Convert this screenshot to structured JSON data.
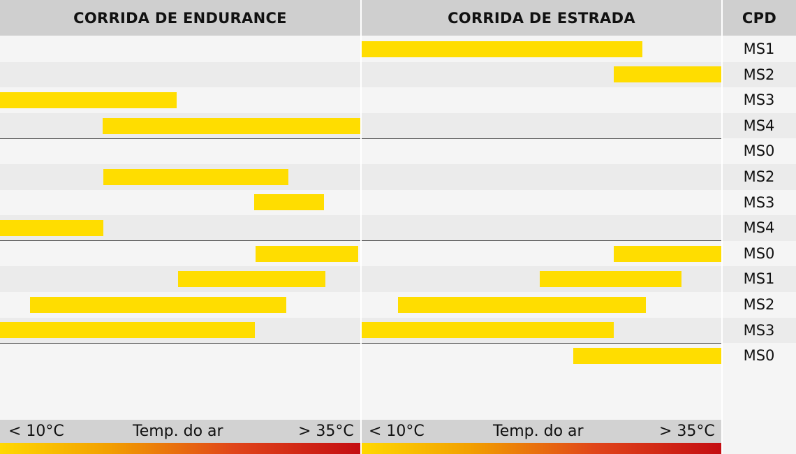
{
  "header": {
    "endurance_title": "CORRIDA DE ENDURANCE",
    "road_title": "CORRIDA DE ESTRADA",
    "cpd_title": "CPD"
  },
  "footer": {
    "endurance": {
      "low": "< 10°C",
      "mid": "Temp. do ar",
      "high": "> 35°C"
    },
    "road": {
      "low": "< 10°C",
      "mid": "Temp. do ar",
      "high": "> 35°C"
    }
  },
  "colors": {
    "bar": "#ffdd00",
    "grad_start": "#ffd800",
    "grad_end": "#c40d12",
    "header_bg": "#cfcfcf"
  },
  "chart_data": {
    "type": "bar",
    "orientation": "horizontal-range",
    "x_scale": "relative air temperature from < 10°C (0.0) to > 35°C (1.0)",
    "panels": [
      "CORRIDA DE ENDURANCE",
      "CORRIDA DE ESTRADA"
    ],
    "rows": [
      {
        "ms": "MS1",
        "endurance": null,
        "road": [
          0.0,
          0.78
        ]
      },
      {
        "ms": "MS2",
        "endurance": null,
        "road": [
          0.7,
          1.0
        ]
      },
      {
        "ms": "MS3",
        "endurance": [
          0.0,
          0.49
        ],
        "road": null
      },
      {
        "ms": "MS4",
        "endurance": [
          0.285,
          1.0
        ],
        "road": null
      },
      {
        "ms": "MS0",
        "endurance": null,
        "road": null
      },
      {
        "ms": "MS2",
        "endurance": [
          0.287,
          0.8
        ],
        "road": null
      },
      {
        "ms": "MS3",
        "endurance": [
          0.705,
          0.9
        ],
        "road": null
      },
      {
        "ms": "MS4",
        "endurance": [
          0.0,
          0.287
        ],
        "road": null
      },
      {
        "ms": "MS0",
        "endurance": [
          0.71,
          0.995
        ],
        "road": [
          0.7,
          1.0
        ]
      },
      {
        "ms": "MS1",
        "endurance": [
          0.494,
          0.904
        ],
        "road": [
          0.495,
          0.89
        ]
      },
      {
        "ms": "MS2",
        "endurance": [
          0.083,
          0.795
        ],
        "road": [
          0.1,
          0.79
        ]
      },
      {
        "ms": "MS3",
        "endurance": [
          0.0,
          0.707
        ],
        "road": [
          0.0,
          0.7
        ]
      },
      {
        "ms": "MS0",
        "endurance": null,
        "road": [
          0.588,
          1.0
        ]
      }
    ],
    "group_dividers_after_row": [
      3,
      7,
      11
    ]
  }
}
